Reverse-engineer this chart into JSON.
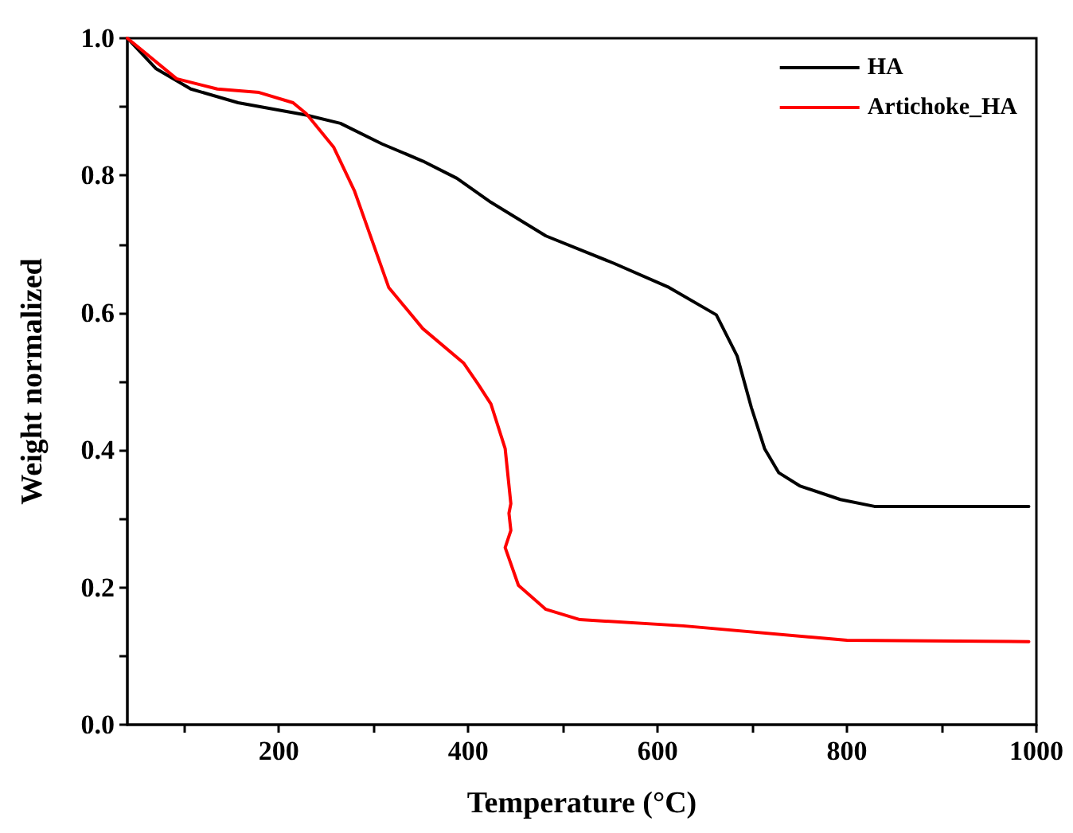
{
  "chart_data": {
    "type": "line",
    "xlabel": "Temperature (°C)",
    "ylabel": "Weight normalized",
    "xlim": [
      40,
      1000
    ],
    "xticks": [
      {
        "value": 100,
        "label": null
      },
      200,
      {
        "value": 300,
        "label": null
      },
      400,
      {
        "value": 500,
        "label": null
      },
      600,
      {
        "value": 700,
        "label": null
      },
      800,
      {
        "value": 900,
        "label": null
      },
      1000
    ],
    "ylim": [
      0,
      1
    ],
    "yticks": [
      "0.0",
      {
        "value": 0.1,
        "label": null
      },
      0.2,
      {
        "value": 0.3,
        "label": null
      },
      0.4,
      {
        "value": 0.5,
        "label": null
      },
      0.6,
      {
        "value": 0.7,
        "label": null
      },
      0.8,
      {
        "value": 0.9,
        "label": null
      },
      "1.0"
    ],
    "grid": false,
    "legend": "top right",
    "marker": "none",
    "line_style": "solid",
    "series": [
      {
        "name": "HA",
        "color": "#000000",
        "x": [
          40,
          70,
          107,
          157,
          229,
          265,
          309,
          352,
          388,
          424,
          482,
          554,
          612,
          662,
          684,
          699,
          713,
          728,
          750,
          793,
          829,
          992
        ],
        "values": [
          1.0,
          0.956,
          0.926,
          0.906,
          0.888,
          0.876,
          0.846,
          0.821,
          0.796,
          0.761,
          0.712,
          0.672,
          0.637,
          0.597,
          0.537,
          0.462,
          0.402,
          0.367,
          0.348,
          0.328,
          0.318,
          0.318
        ]
      },
      {
        "name": "Artichoke_HA",
        "color": "#ff0000",
        "x": [
          40,
          92,
          135,
          179,
          215,
          229,
          258,
          280,
          316,
          352,
          395,
          410,
          424,
          439,
          445,
          443,
          445,
          439,
          453,
          482,
          518,
          627,
          800,
          992
        ],
        "values": [
          1.0,
          0.941,
          0.926,
          0.921,
          0.906,
          0.89,
          0.841,
          0.777,
          0.637,
          0.577,
          0.527,
          0.497,
          0.467,
          0.402,
          0.322,
          0.308,
          0.283,
          0.258,
          0.203,
          0.168,
          0.153,
          0.144,
          0.123,
          0.121
        ]
      }
    ]
  }
}
